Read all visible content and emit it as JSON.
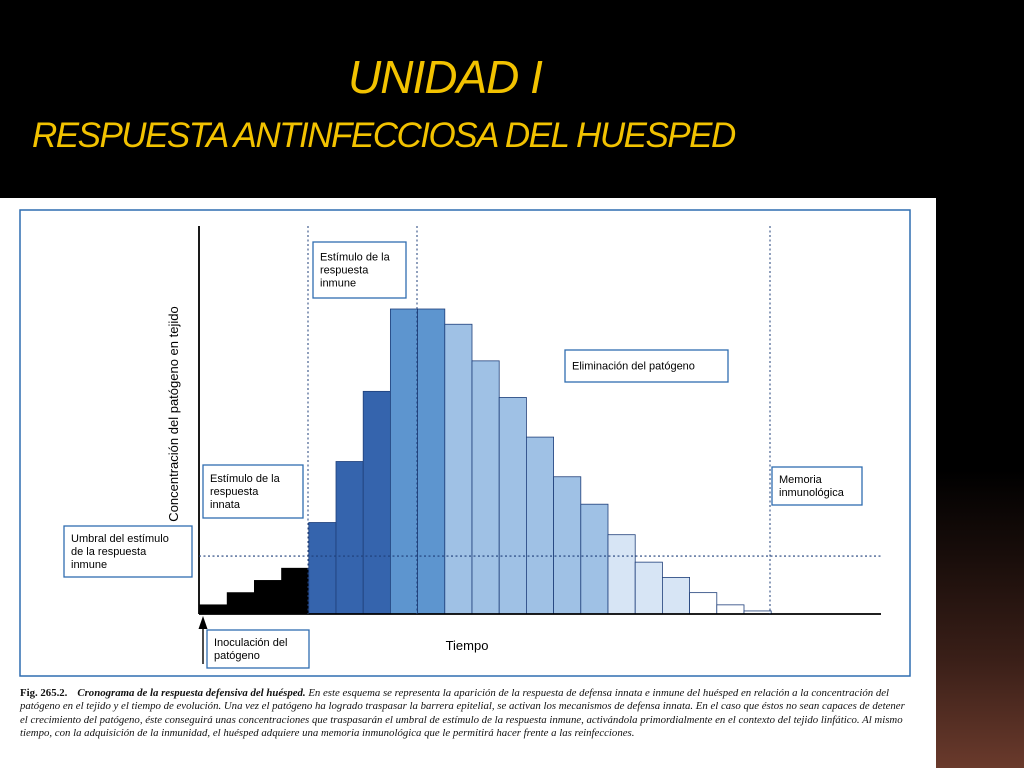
{
  "slide": {
    "title_line1": "UNIDAD I",
    "title_line2": "RESPUESTA ANTINFECCIOSA DEL HUESPED"
  },
  "colors": {
    "title": "#f2c200",
    "frame": "#2f6db0",
    "black_bars": "#000000",
    "dark_blue": "#3564ad",
    "mid_blue": "#5d95cf",
    "light_blue": "#9fc1e5",
    "pale_blue": "#d7e5f5",
    "white_bars": "#ffffff"
  },
  "chart_data": {
    "type": "bar",
    "title": "",
    "xlabel": "Tiempo",
    "ylabel": "Concentración del patógeno en tejido",
    "ylim": [
      0,
      100
    ],
    "grid": false,
    "values": [
      3,
      7,
      11,
      15,
      30,
      50,
      73,
      100,
      100,
      95,
      83,
      71,
      58,
      45,
      36,
      26,
      17,
      12,
      7,
      3,
      1
    ],
    "phase_colors": [
      "black",
      "black",
      "black",
      "black",
      "dark_blue",
      "dark_blue",
      "dark_blue",
      "mid_blue",
      "mid_blue",
      "light_blue",
      "light_blue",
      "light_blue",
      "light_blue",
      "light_blue",
      "light_blue",
      "pale_blue",
      "pale_blue",
      "pale_blue",
      "white",
      "white",
      "white"
    ],
    "threshold": {
      "y": 19,
      "label": "Umbral del estímulo de la respuesta inmune"
    },
    "annotations": [
      {
        "id": "stim_innate",
        "lines": [
          "Estímulo de la",
          "respuesta",
          "innata"
        ]
      },
      {
        "id": "stim_immune",
        "lines": [
          "Estímulo de la",
          "respuesta",
          "inmune"
        ]
      },
      {
        "id": "elimination",
        "lines": [
          "Eliminación del patógeno"
        ]
      },
      {
        "id": "memory",
        "lines": [
          "Memoria",
          "inmunológica"
        ]
      },
      {
        "id": "threshold",
        "lines": [
          "Umbral del estímulo",
          "de la respuesta",
          "inmune"
        ]
      },
      {
        "id": "inoculation",
        "lines": [
          "Inoculación del",
          "patógeno"
        ]
      }
    ]
  },
  "caption": {
    "fig_label": "Fig. 265.2.",
    "fig_title": "Cronograma de la respuesta defensiva del huésped.",
    "fig_text": " En este esquema se representa la aparición de la respuesta de defensa innata e inmune del huésped en relación a la concentración del patógeno en el tejido y el tiempo de evolución. Una vez el patógeno ha logrado traspasar la barrera epitelial, se activan los mecanismos de defensa innata. En el caso que éstos no sean capaces de detener el crecimiento del patógeno, éste conseguirá unas concentraciones que traspasarán el umbral de estímulo de la respuesta inmune, activándola primordialmente en el contexto del tejido linfático. Al mismo tiempo, con la adquisición de la inmunidad, el huésped adquiere una memoria inmunológica que le permitirá hacer frente a las reinfecciones."
  }
}
